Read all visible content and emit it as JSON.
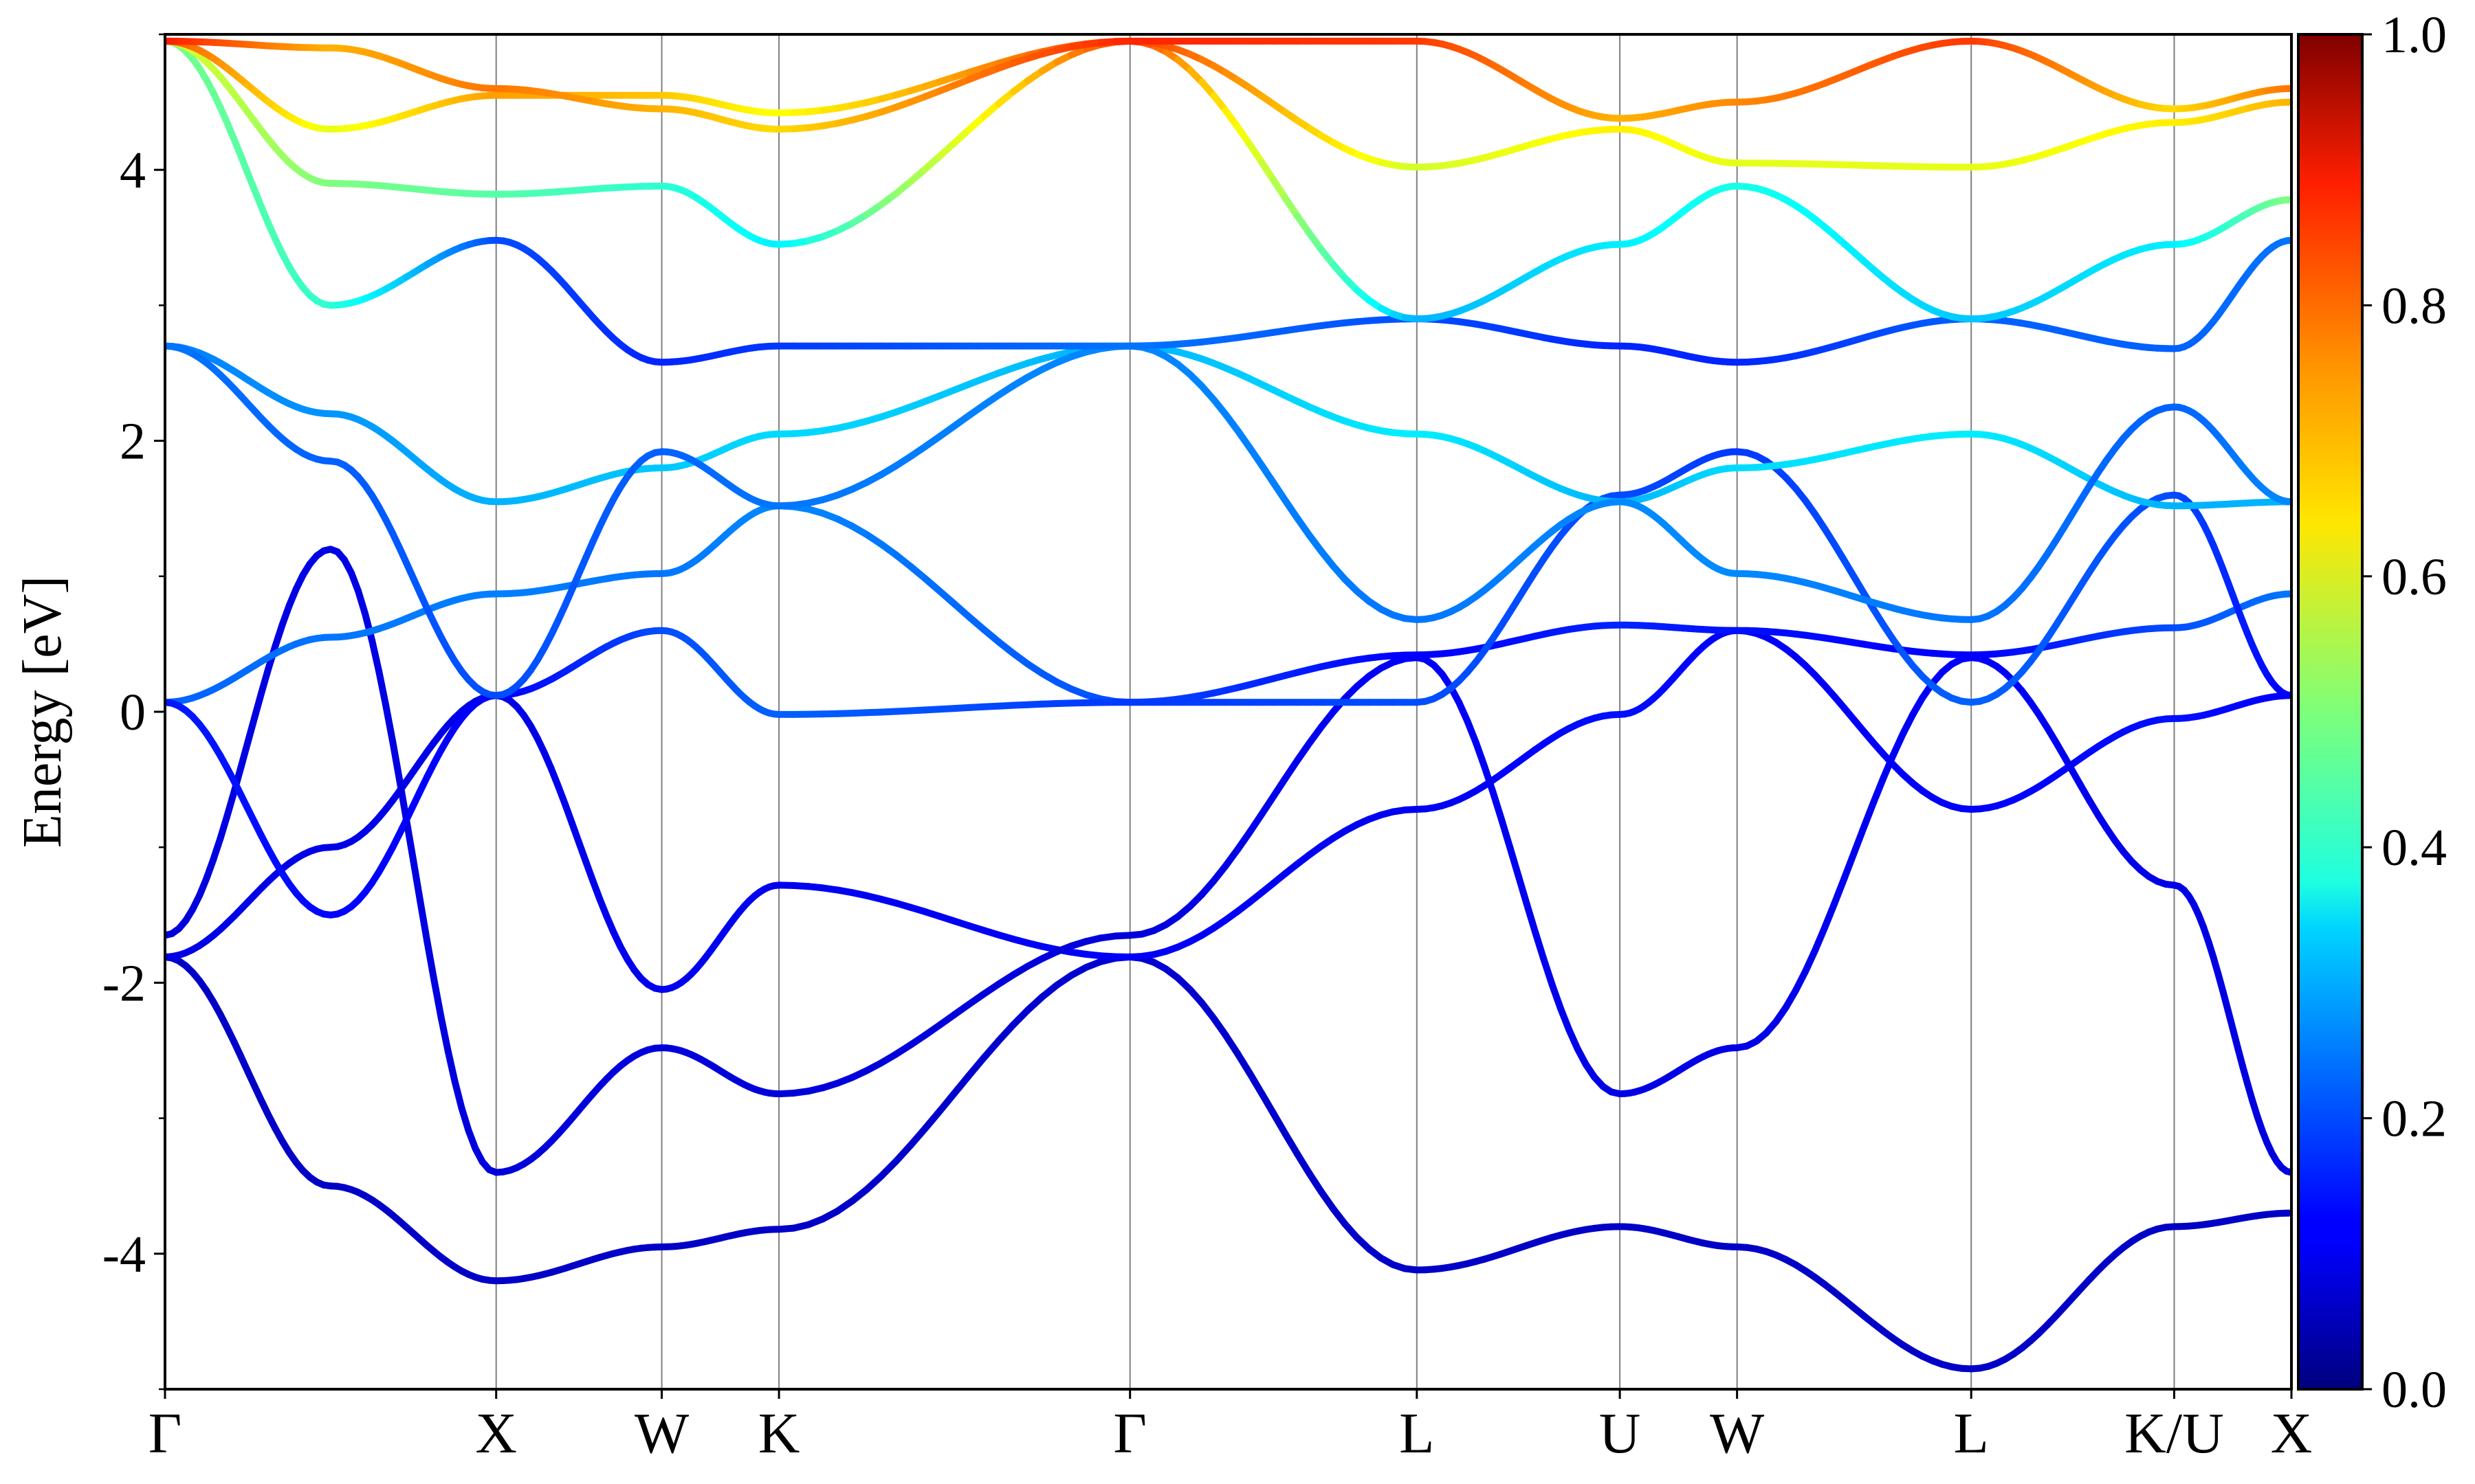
{
  "chart_data": {
    "type": "line",
    "title": "",
    "xlabel": "",
    "ylabel": "Energy [eV]",
    "ylim": [
      -5,
      5
    ],
    "yticks": [
      -4,
      -2,
      0,
      2,
      4
    ],
    "yticks_minor": [
      -5,
      -3,
      -1,
      1,
      3,
      5
    ],
    "grid": "vertical lines at high-symmetry points",
    "legend": "none",
    "kpoints": [
      {
        "label": "Γ",
        "x": 0
      },
      {
        "label": "X",
        "x": 1.0
      },
      {
        "label": "W",
        "x": 1.5
      },
      {
        "label": "K",
        "x": 1.854
      },
      {
        "label": "Γ",
        "x": 2.914
      },
      {
        "label": "L",
        "x": 3.78
      },
      {
        "label": "U",
        "x": 4.393
      },
      {
        "label": "W",
        "x": 4.747
      },
      {
        "label": "L",
        "x": 5.454
      },
      {
        "label": "K/U",
        "x": 6.067
      },
      {
        "label": "X",
        "x": 6.421
      }
    ],
    "colorbar": {
      "min": 0.0,
      "max": 1.0,
      "ticks": [
        0.0,
        0.2,
        0.4,
        0.6,
        0.8,
        1.0
      ],
      "tick_labels": [
        "0.0",
        "0.2",
        "0.4",
        "0.6",
        "0.8",
        "1.0"
      ],
      "colormap": "jet"
    },
    "series": [
      {
        "x": [
          0,
          0.5,
          1.0,
          1.5,
          1.854,
          2.914,
          3.78,
          4.393,
          4.747,
          5.454,
          6.067,
          6.421
        ],
        "y": [
          -1.81,
          -3.5,
          -4.2,
          -3.95,
          -3.82,
          -1.81,
          -4.12,
          -3.8,
          -3.95,
          -4.85,
          -3.8,
          -3.7
        ],
        "w": [
          0.07,
          0.07,
          0.07,
          0.07,
          0.07,
          0.08,
          0.07,
          0.07,
          0.07,
          0.07,
          0.07,
          0.07
        ]
      },
      {
        "x": [
          0,
          0.5,
          1.0,
          1.5,
          1.854,
          2.914,
          3.78,
          4.393,
          4.747,
          5.454,
          6.067,
          6.421
        ],
        "y": [
          -1.81,
          -1.0,
          0.12,
          -2.05,
          -1.28,
          -1.81,
          -0.72,
          -0.02,
          0.6,
          -0.72,
          -0.05,
          0.12
        ],
        "w": [
          0.1,
          0.1,
          0.1,
          0.11,
          0.11,
          0.12,
          0.11,
          0.14,
          0.12,
          0.12,
          0.14,
          0.12
        ]
      },
      {
        "x": [
          0,
          0.5,
          1.0,
          1.5,
          1.854,
          2.914,
          3.78,
          4.393,
          4.747,
          5.454,
          6.067,
          6.421
        ],
        "y": [
          -1.65,
          1.2,
          -3.4,
          -2.48,
          -2.82,
          -1.65,
          0.4,
          -2.82,
          -2.48,
          0.4,
          -1.28,
          -3.4
        ],
        "w": [
          0.09,
          0.1,
          0.09,
          0.09,
          0.09,
          0.09,
          0.12,
          0.1,
          0.1,
          0.12,
          0.1,
          0.09
        ]
      },
      {
        "x": [
          0,
          0.5,
          1.0,
          1.5,
          1.854,
          2.914,
          3.78,
          4.393,
          4.747,
          5.454,
          6.067,
          6.421
        ],
        "y": [
          0.07,
          0.55,
          0.87,
          1.02,
          1.52,
          0.07,
          0.42,
          0.64,
          0.6,
          0.42,
          0.62,
          0.87
        ],
        "w": [
          0.22,
          0.24,
          0.25,
          0.24,
          0.26,
          0.2,
          0.12,
          0.16,
          0.14,
          0.12,
          0.2,
          0.24
        ]
      },
      {
        "x": [
          0,
          0.5,
          1.0,
          1.5,
          1.854,
          2.914,
          3.78,
          4.393,
          4.747,
          5.454,
          6.067,
          6.421
        ],
        "y": [
          0.07,
          -1.5,
          0.12,
          0.6,
          -0.02,
          0.07,
          0.07,
          1.6,
          1.92,
          0.07,
          1.6,
          0.12
        ],
        "w": [
          0.15,
          0.13,
          0.12,
          0.2,
          0.22,
          0.18,
          0.2,
          0.2,
          0.18,
          0.22,
          0.2,
          0.12
        ]
      },
      {
        "x": [
          0,
          0.5,
          1.0,
          1.5,
          1.854,
          2.914,
          3.78,
          4.393,
          4.747,
          5.454,
          6.067,
          6.421
        ],
        "y": [
          2.7,
          2.2,
          1.55,
          1.8,
          2.05,
          2.7,
          2.05,
          1.55,
          1.8,
          2.05,
          1.52,
          1.55
        ],
        "w": [
          0.25,
          0.27,
          0.3,
          0.32,
          0.34,
          0.3,
          0.36,
          0.3,
          0.34,
          0.36,
          0.3,
          0.3
        ]
      },
      {
        "x": [
          0,
          0.5,
          1.0,
          1.5,
          1.854,
          2.914,
          3.78,
          4.393,
          4.747,
          5.454,
          6.067,
          6.421
        ],
        "y": [
          2.7,
          1.85,
          0.12,
          1.92,
          1.52,
          2.7,
          0.68,
          1.55,
          1.02,
          0.68,
          2.25,
          1.55
        ],
        "w": [
          0.24,
          0.22,
          0.2,
          0.22,
          0.24,
          0.26,
          0.24,
          0.26,
          0.26,
          0.24,
          0.22,
          0.26
        ]
      },
      {
        "x": [
          0,
          0.5,
          1.0,
          1.5,
          1.854,
          2.914,
          3.78,
          4.393,
          4.747,
          5.454,
          6.067,
          6.421
        ],
        "y": [
          4.95,
          3.0,
          3.48,
          2.58,
          2.7,
          2.7,
          2.9,
          2.7,
          2.58,
          2.9,
          2.68,
          3.48
        ],
        "w": [
          0.5,
          0.42,
          0.2,
          0.16,
          0.18,
          0.24,
          0.2,
          0.16,
          0.16,
          0.22,
          0.22,
          0.24
        ]
      },
      {
        "x": [
          0,
          0.5,
          1.0,
          1.5,
          1.854,
          2.914,
          3.78,
          4.393,
          4.747,
          5.454,
          6.067,
          6.421
        ],
        "y": [
          4.95,
          3.9,
          3.82,
          3.88,
          3.45,
          4.95,
          2.9,
          3.45,
          3.88,
          2.9,
          3.45,
          3.78
        ],
        "w": [
          0.6,
          0.5,
          0.46,
          0.42,
          0.36,
          0.82,
          0.3,
          0.36,
          0.4,
          0.32,
          0.36,
          0.5
        ]
      },
      {
        "x": [
          0,
          0.5,
          1.0,
          1.5,
          1.854,
          2.914,
          3.78,
          4.393,
          4.747,
          5.454,
          6.067,
          6.421
        ],
        "y": [
          4.95,
          4.3,
          4.55,
          4.55,
          4.42,
          4.95,
          4.02,
          4.3,
          4.05,
          4.02,
          4.35,
          4.5
        ],
        "w": [
          0.8,
          0.6,
          0.72,
          0.68,
          0.62,
          0.82,
          0.58,
          0.64,
          0.6,
          0.6,
          0.64,
          0.7
        ]
      },
      {
        "x": [
          0,
          0.5,
          1.0,
          1.5,
          1.854,
          2.914,
          3.78,
          4.393,
          4.747,
          5.454,
          6.067,
          6.421
        ],
        "y": [
          4.95,
          4.9,
          4.6,
          4.45,
          4.3,
          4.95,
          4.95,
          4.38,
          4.5,
          4.95,
          4.45,
          4.6
        ],
        "w": [
          0.85,
          0.7,
          0.76,
          0.7,
          0.66,
          0.84,
          0.82,
          0.7,
          0.74,
          0.82,
          0.66,
          0.76
        ]
      }
    ]
  }
}
